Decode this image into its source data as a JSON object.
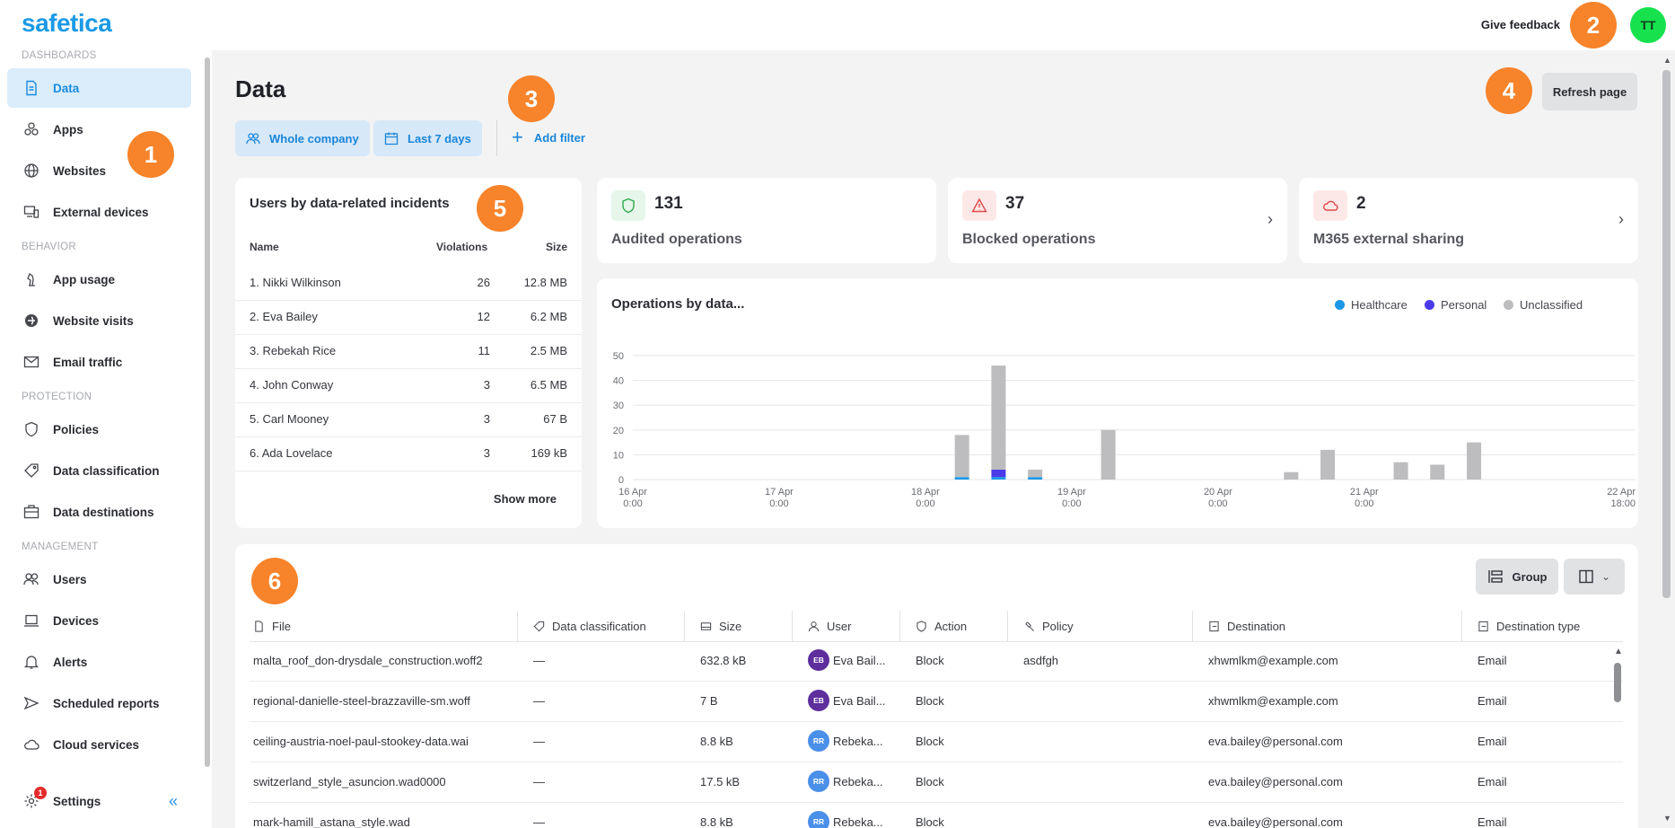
{
  "app": {
    "logo": "safetica",
    "feedback": "Give feedback",
    "avatar": "TT"
  },
  "sidebar": {
    "sections": [
      "DASHBOARDS",
      "BEHAVIOR",
      "PROTECTION",
      "MANAGEMENT"
    ],
    "items": [
      {
        "label": "Data",
        "icon": "document-icon"
      },
      {
        "label": "Apps",
        "icon": "apps-icon"
      },
      {
        "label": "Websites",
        "icon": "globe-icon"
      },
      {
        "label": "External devices",
        "icon": "devices-icon"
      },
      {
        "label": "App usage",
        "icon": "chess-icon"
      },
      {
        "label": "Website visits",
        "icon": "browser-icon"
      },
      {
        "label": "Email traffic",
        "icon": "mail-icon"
      },
      {
        "label": "Policies",
        "icon": "shield-icon"
      },
      {
        "label": "Data classification",
        "icon": "tag-icon"
      },
      {
        "label": "Data destinations",
        "icon": "briefcase-icon"
      },
      {
        "label": "Users",
        "icon": "users-icon"
      },
      {
        "label": "Devices",
        "icon": "laptop-icon"
      },
      {
        "label": "Alerts",
        "icon": "bell-icon"
      },
      {
        "label": "Scheduled reports",
        "icon": "send-icon"
      },
      {
        "label": "Cloud services",
        "icon": "cloud-icon"
      }
    ],
    "settings": "Settings",
    "settings_badge": "1"
  },
  "markers": [
    "1",
    "2",
    "3",
    "4",
    "5",
    "6"
  ],
  "page": {
    "title": "Data",
    "filters": [
      "Whole company",
      "Last 7 days"
    ],
    "add_filter": "Add filter",
    "refresh": "Refresh page"
  },
  "users_card": {
    "title": "Users by data-related incidents",
    "columns": [
      "Name",
      "Violations",
      "Size"
    ],
    "rows": [
      {
        "name": "1. Nikki Wilkinson",
        "violations": "26",
        "size": "12.8 MB"
      },
      {
        "name": "2. Eva Bailey",
        "violations": "12",
        "size": "6.2 MB"
      },
      {
        "name": "3. Rebekah Rice",
        "violations": "11",
        "size": "2.5 MB"
      },
      {
        "name": "4. John Conway",
        "violations": "3",
        "size": "6.5 MB"
      },
      {
        "name": "5. Carl Mooney",
        "violations": "3",
        "size": "67 B"
      },
      {
        "name": "6. Ada Lovelace",
        "violations": "3",
        "size": "169 kB"
      }
    ],
    "show_more": "Show more"
  },
  "stats": [
    {
      "value": "131",
      "label": "Audited operations",
      "color": "#e6f6ea",
      "icon_color": "#2fa84f"
    },
    {
      "value": "37",
      "label": "Blocked operations",
      "color": "#fde8e8",
      "icon_color": "#e04848"
    },
    {
      "value": "2",
      "label": "M365 external sharing",
      "color": "#fde8e8",
      "icon_color": "#e04848"
    }
  ],
  "chart": {
    "title": "Operations by data...",
    "legend": [
      {
        "name": "Healthcare",
        "color": "#1a98e6"
      },
      {
        "name": "Personal",
        "color": "#4a3ae8"
      },
      {
        "name": "Unclassified",
        "color": "#bdbdbf"
      }
    ]
  },
  "chart_data": {
    "type": "bar",
    "stacked": true,
    "y_ticks": [
      "0",
      "10",
      "20",
      "30",
      "40",
      "50"
    ],
    "ylim": [
      0,
      50
    ],
    "x_ticks": [
      {
        "date": "16 Apr",
        "time": "0:00"
      },
      {
        "date": "17 Apr",
        "time": "0:00"
      },
      {
        "date": "18 Apr",
        "time": "0:00"
      },
      {
        "date": "19 Apr",
        "time": "0:00"
      },
      {
        "date": "20 Apr",
        "time": "0:00"
      },
      {
        "date": "21 Apr",
        "time": "0:00"
      },
      {
        "date": "22 Apr",
        "time": "18:00"
      }
    ],
    "bars": [
      {
        "t": "2024-04-18 06:00",
        "healthcare": 1,
        "personal": 0,
        "unclassified": 17
      },
      {
        "t": "2024-04-18 12:00",
        "healthcare": 1,
        "personal": 3,
        "unclassified": 42
      },
      {
        "t": "2024-04-18 18:00",
        "healthcare": 1,
        "personal": 0,
        "unclassified": 3
      },
      {
        "t": "2024-04-19 06:00",
        "healthcare": 0,
        "personal": 0,
        "unclassified": 20
      },
      {
        "t": "2024-04-20 12:00",
        "healthcare": 0,
        "personal": 0,
        "unclassified": 3
      },
      {
        "t": "2024-04-20 18:00",
        "healthcare": 0,
        "personal": 0,
        "unclassified": 12
      },
      {
        "t": "2024-04-21 06:00",
        "healthcare": 0,
        "personal": 0,
        "unclassified": 7
      },
      {
        "t": "2024-04-21 12:00",
        "healthcare": 0,
        "personal": 0,
        "unclassified": 6
      },
      {
        "t": "2024-04-21 18:00",
        "healthcare": 0,
        "personal": 0,
        "unclassified": 15
      }
    ]
  },
  "table": {
    "group": "Group",
    "columns": [
      "File",
      "Data classification",
      "Size",
      "User",
      "Action",
      "Policy",
      "Destination",
      "Destination type"
    ],
    "rows": [
      {
        "file": "malta_roof_don-drysdale_construction.woff2",
        "classification": "—",
        "size": "632.8 kB",
        "initials": "EB",
        "user": "Eva Bail...",
        "badge": "#5d2e9c",
        "action": "Block",
        "policy": "asdfgh",
        "destination": "xhwmlkm@example.com",
        "type": "Email"
      },
      {
        "file": "regional-danielle-steel-brazzaville-sm.woff",
        "classification": "—",
        "size": "7 B",
        "initials": "EB",
        "user": "Eva Bail...",
        "badge": "#5d2e9c",
        "action": "Block",
        "policy": "",
        "destination": "xhwmlkm@example.com",
        "type": "Email"
      },
      {
        "file": "ceiling-austria-noel-paul-stookey-data.wai",
        "classification": "—",
        "size": "8.8 kB",
        "initials": "RR",
        "user": "Rebeka...",
        "badge": "#4a8fe8",
        "action": "Block",
        "policy": "",
        "destination": "eva.bailey@personal.com",
        "type": "Email"
      },
      {
        "file": "switzerland_style_asuncion.wad0000",
        "classification": "—",
        "size": "17.5 kB",
        "initials": "RR",
        "user": "Rebeka...",
        "badge": "#4a8fe8",
        "action": "Block",
        "policy": "",
        "destination": "eva.bailey@personal.com",
        "type": "Email"
      },
      {
        "file": "mark-hamill_astana_style.wad",
        "classification": "—",
        "size": "8.8 kB",
        "initials": "RR",
        "user": "Rebeka...",
        "badge": "#4a8fe8",
        "action": "Block",
        "policy": "",
        "destination": "eva.bailey@personal.com",
        "type": "Email"
      }
    ]
  }
}
